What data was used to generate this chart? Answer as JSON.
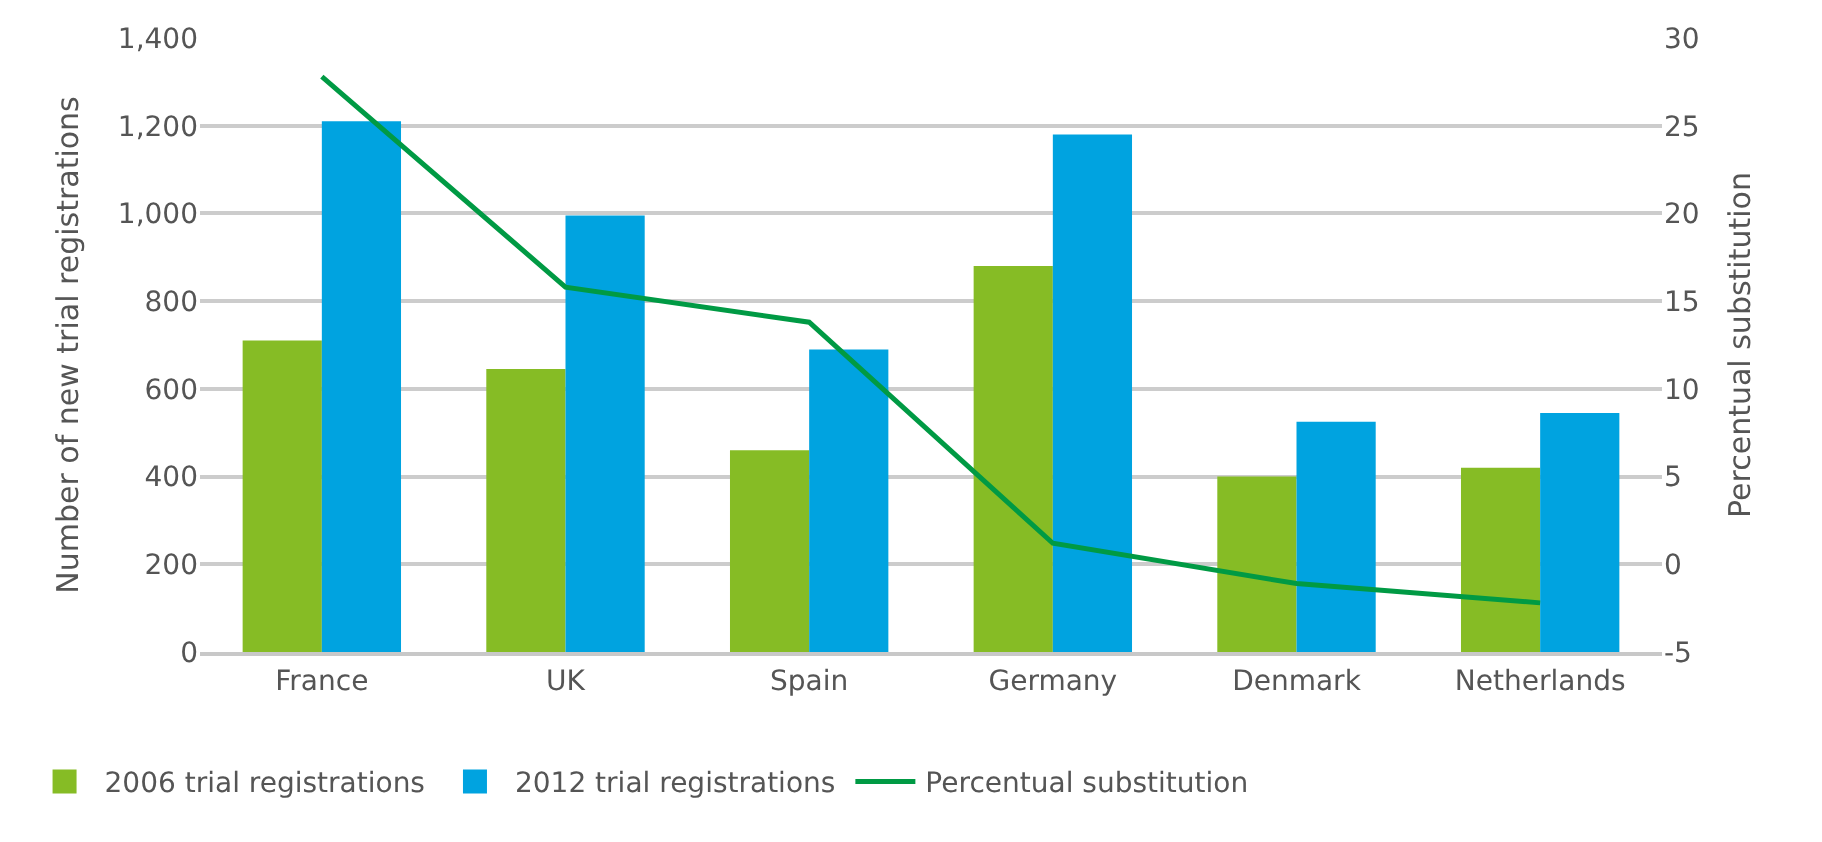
{
  "chart_data": {
    "type": "bar",
    "ylabel": "Number of new trial registrations",
    "y2label": "Percentual substitution",
    "categories": [
      "France",
      "UK",
      "Spain",
      "Germany",
      "Denmark",
      "Netherlands"
    ],
    "series": [
      {
        "name": "2006 trial registrations",
        "color": "#86bc25",
        "values": [
          710,
          645,
          460,
          880,
          400,
          420
        ]
      },
      {
        "name": "2012 trial registrations",
        "color": "#00a3e0",
        "values": [
          1210,
          995,
          690,
          1180,
          525,
          545
        ]
      },
      {
        "name": "Percentual substitution",
        "type": "line",
        "axis": "y2",
        "color": "#009a44",
        "values": [
          27.8,
          15.8,
          13.8,
          1.2,
          -1.1,
          -2.2
        ]
      }
    ],
    "ylim": [
      0,
      1400
    ],
    "yticks": [
      0,
      200,
      400,
      600,
      800,
      {
        "value": 1000,
        "label": "1,000"
      },
      {
        "value": 1200,
        "label": "1,200"
      },
      {
        "value": 1400,
        "label": "1,400"
      }
    ],
    "y2lim": [
      -5,
      30
    ],
    "y2ticks": [
      -5,
      0,
      5,
      10,
      15,
      20,
      25,
      30
    ],
    "grid": "y",
    "legend": "bottom",
    "marker": "none",
    "line_style": "solid"
  }
}
